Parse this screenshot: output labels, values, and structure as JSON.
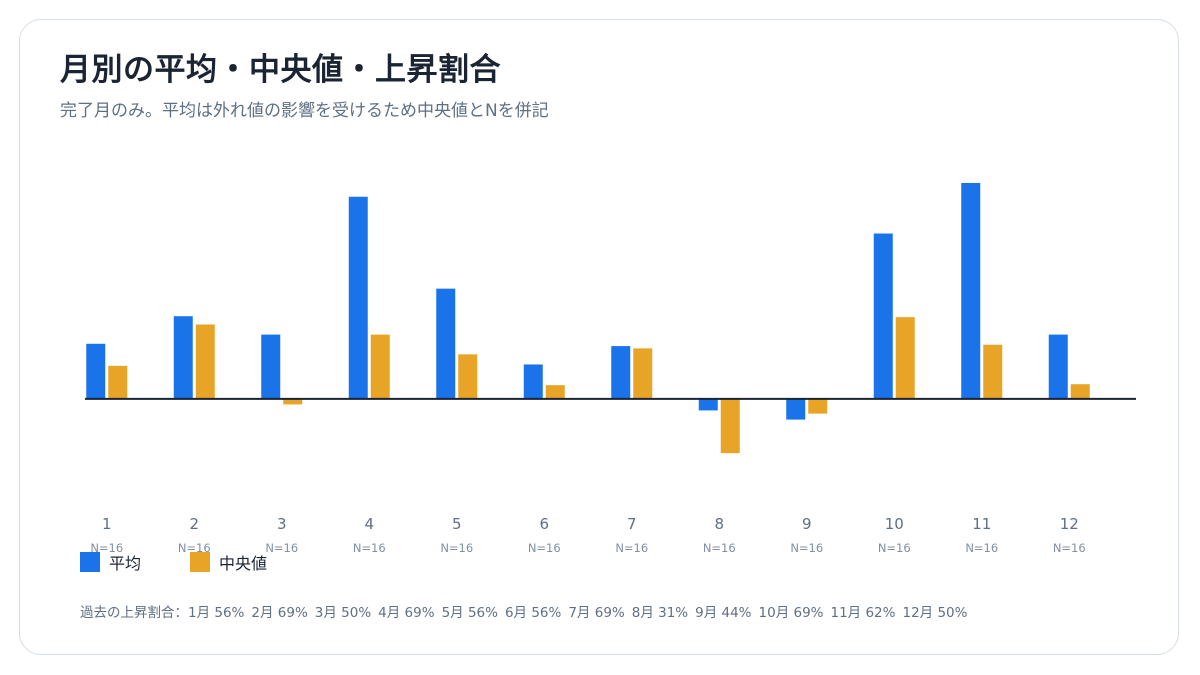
{
  "title": "月別の平均・中央値・上昇割合",
  "subtitle": "完了月のみ。平均は外れ値の影響を受けるため中央値とNを併記",
  "colors": {
    "mean": "#1a73e8",
    "median": "#e8a427",
    "axis": "#1a2433",
    "muted": "#8090a2"
  },
  "chart_data": {
    "type": "bar",
    "categories": [
      "1",
      "2",
      "3",
      "4",
      "5",
      "6",
      "7",
      "8",
      "9",
      "10",
      "11",
      "12"
    ],
    "n_labels": [
      "N=16",
      "N=16",
      "N=16",
      "N=16",
      "N=16",
      "N=16",
      "N=16",
      "N=16",
      "N=16",
      "N=16",
      "N=16",
      "N=16"
    ],
    "series": [
      {
        "name": "平均",
        "values": [
          1.2,
          1.8,
          1.4,
          4.4,
          2.4,
          0.75,
          1.15,
          -0.25,
          -0.45,
          3.6,
          4.7,
          1.4
        ]
      },
      {
        "name": "中央値",
        "values": [
          0.72,
          1.62,
          -0.12,
          1.4,
          0.97,
          0.3,
          1.1,
          -1.18,
          -0.32,
          1.78,
          1.18,
          0.32
        ]
      }
    ],
    "ylim": [
      -2.2,
      5.2
    ],
    "grid": false,
    "legend_position": "bottom-left"
  },
  "footer": {
    "prefix": "過去の上昇割合：",
    "items": [
      "1月 56%",
      "2月 69%",
      "3月 50%",
      "4月 69%",
      "5月 56%",
      "6月 56%",
      "7月 69%",
      "8月 31%",
      "9月 44%",
      "10月 69%",
      "11月 62%",
      "12月 50%"
    ]
  }
}
